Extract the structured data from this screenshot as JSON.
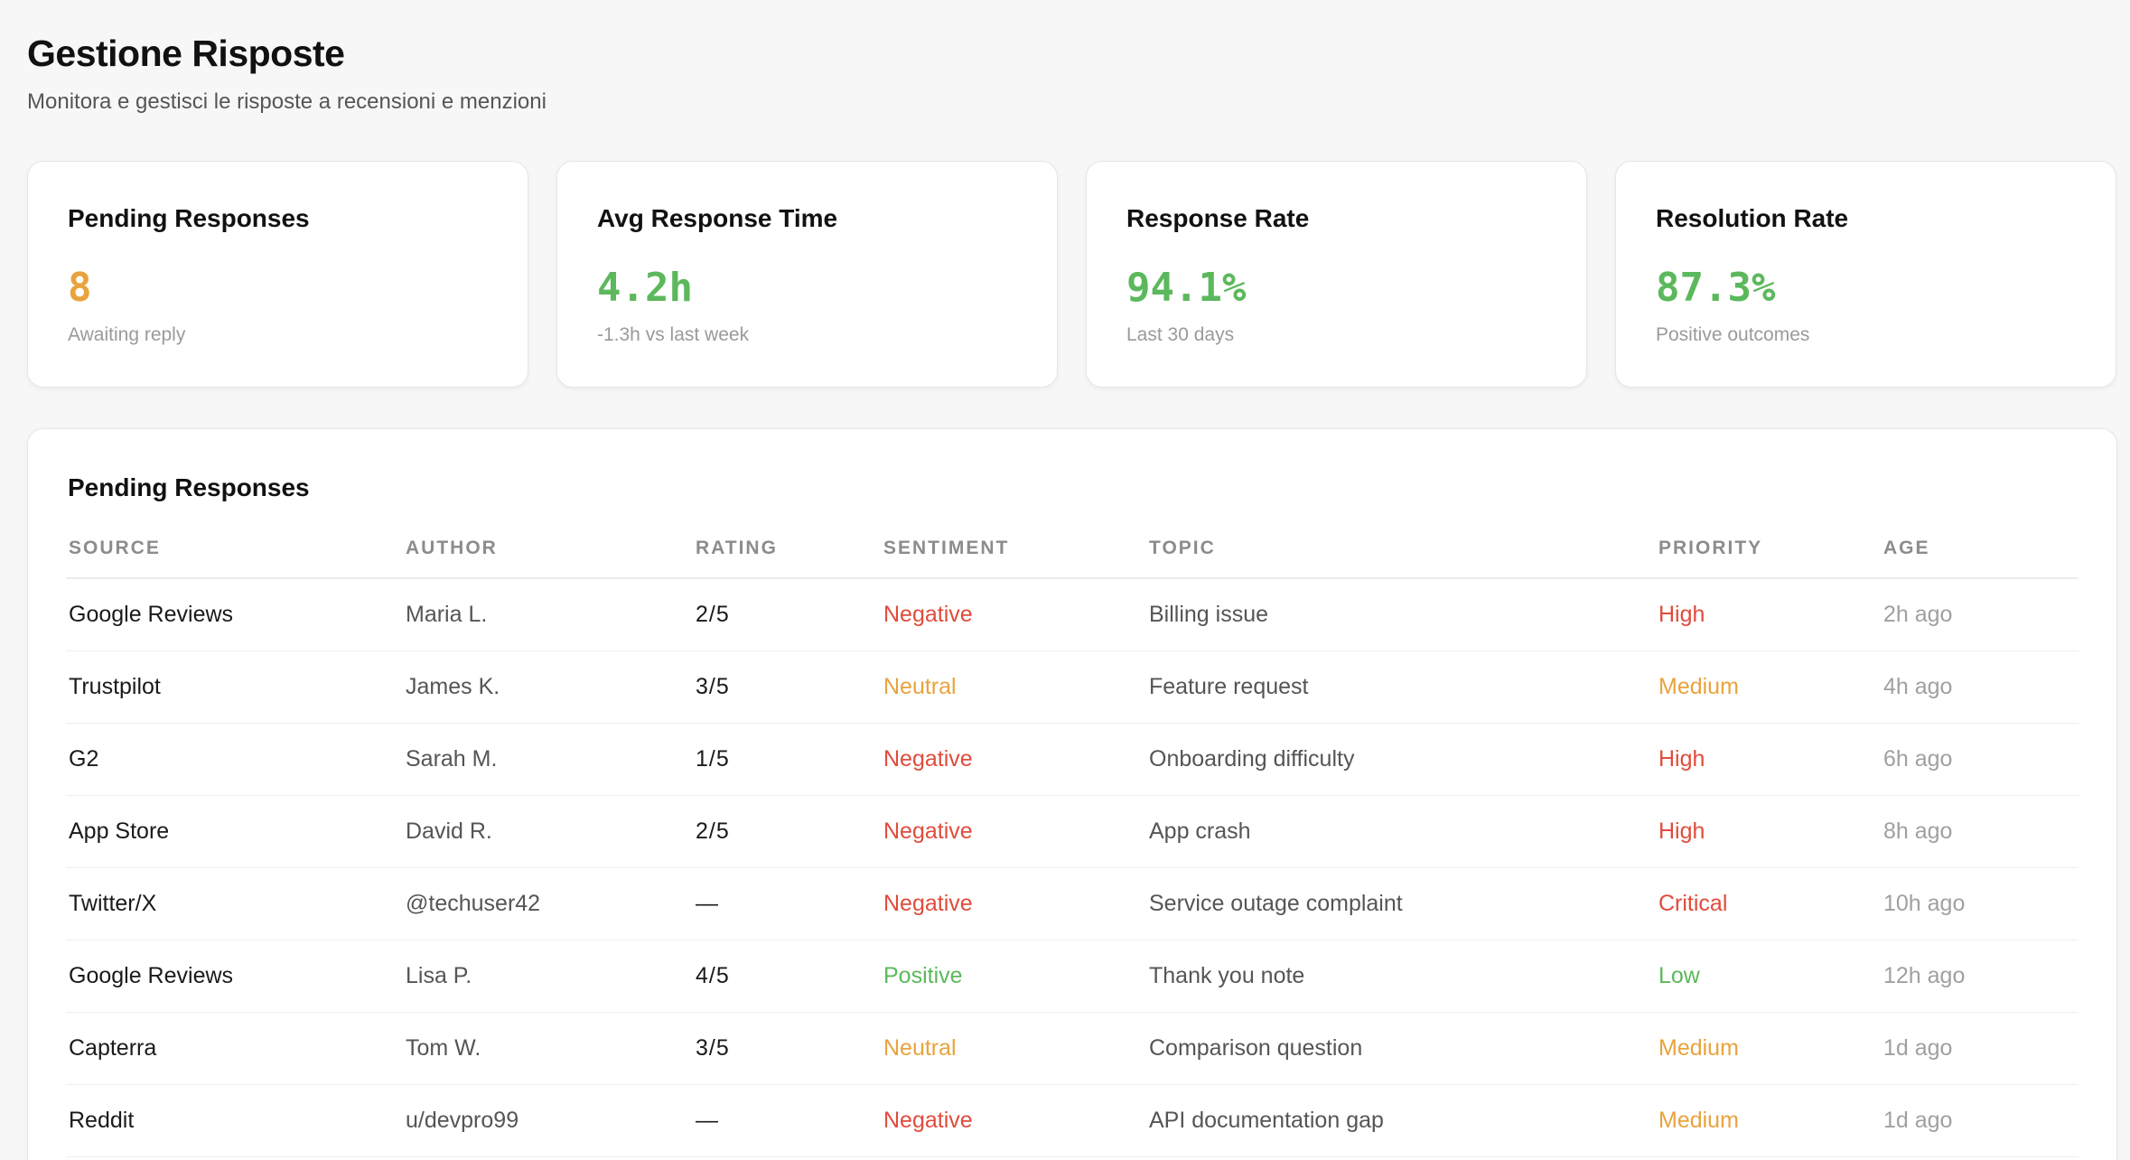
{
  "header": {
    "title": "Gestione Risposte",
    "subtitle": "Monitora e gestisci le risposte a recensioni e menzioni"
  },
  "colors": {
    "warning": "#e8a33d",
    "success": "#5cb85c",
    "danger": "#e14b3b"
  },
  "stats": [
    {
      "title": "Pending Responses",
      "value": "8",
      "note": "Awaiting reply",
      "tone": "warning"
    },
    {
      "title": "Avg Response Time",
      "value": "4.2h",
      "note": "-1.3h vs last week",
      "tone": "success"
    },
    {
      "title": "Response Rate",
      "value": "94.1%",
      "note": "Last 30 days",
      "tone": "success"
    },
    {
      "title": "Resolution Rate",
      "value": "87.3%",
      "note": "Positive outcomes",
      "tone": "success"
    }
  ],
  "pending": {
    "title": "Pending Responses",
    "columns": [
      "SOURCE",
      "AUTHOR",
      "RATING",
      "SENTIMENT",
      "TOPIC",
      "PRIORITY",
      "AGE"
    ],
    "rows": [
      {
        "source": "Google Reviews",
        "author": "Maria L.",
        "rating": "2/5",
        "sentiment": "Negative",
        "topic": "Billing issue",
        "priority": "High",
        "age": "2h ago"
      },
      {
        "source": "Trustpilot",
        "author": "James K.",
        "rating": "3/5",
        "sentiment": "Neutral",
        "topic": "Feature request",
        "priority": "Medium",
        "age": "4h ago"
      },
      {
        "source": "G2",
        "author": "Sarah M.",
        "rating": "1/5",
        "sentiment": "Negative",
        "topic": "Onboarding difficulty",
        "priority": "High",
        "age": "6h ago"
      },
      {
        "source": "App Store",
        "author": "David R.",
        "rating": "2/5",
        "sentiment": "Negative",
        "topic": "App crash",
        "priority": "High",
        "age": "8h ago"
      },
      {
        "source": "Twitter/X",
        "author": "@techuser42",
        "rating": "—",
        "sentiment": "Negative",
        "topic": "Service outage complaint",
        "priority": "Critical",
        "age": "10h ago"
      },
      {
        "source": "Google Reviews",
        "author": "Lisa P.",
        "rating": "4/5",
        "sentiment": "Positive",
        "topic": "Thank you note",
        "priority": "Low",
        "age": "12h ago"
      },
      {
        "source": "Capterra",
        "author": "Tom W.",
        "rating": "3/5",
        "sentiment": "Neutral",
        "topic": "Comparison question",
        "priority": "Medium",
        "age": "1d ago"
      },
      {
        "source": "Reddit",
        "author": "u/devpro99",
        "rating": "—",
        "sentiment": "Negative",
        "topic": "API documentation gap",
        "priority": "Medium",
        "age": "1d ago"
      }
    ]
  }
}
